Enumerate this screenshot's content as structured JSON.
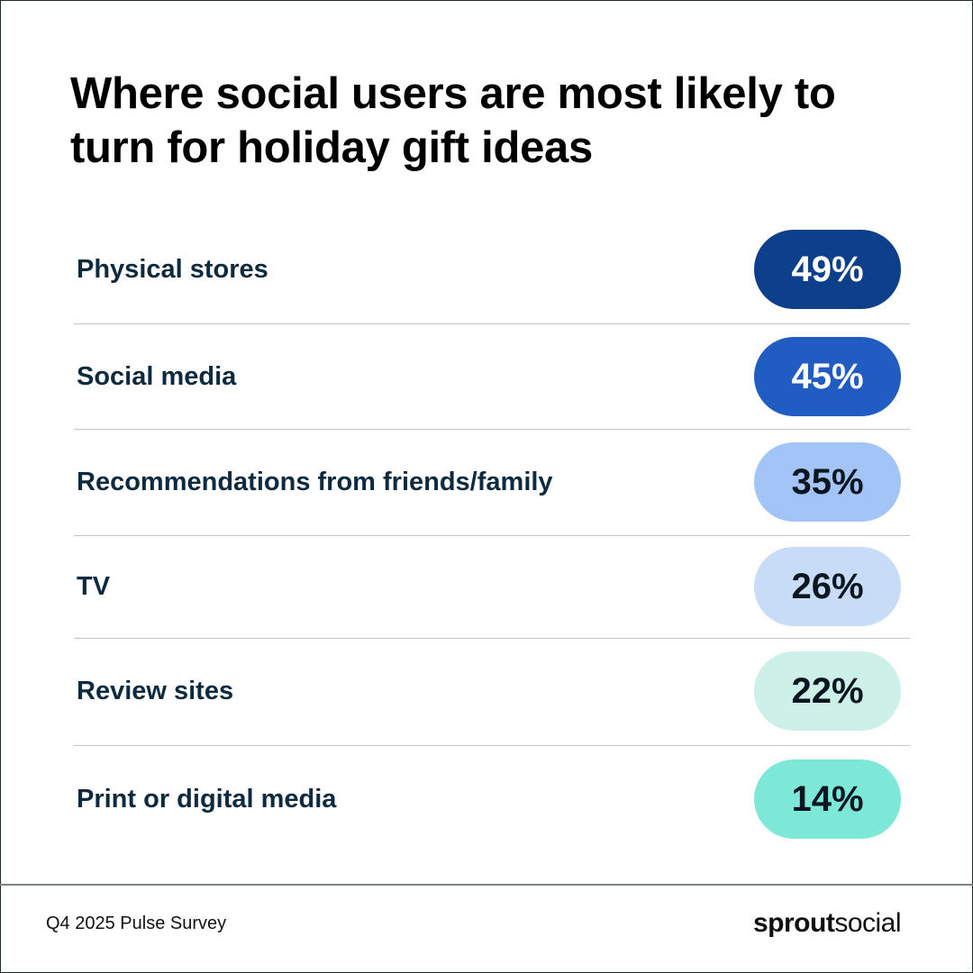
{
  "title": "Where social users are most likely to turn for holiday gift ideas",
  "chart_data": {
    "type": "table",
    "title": "Where social users are most likely to turn for holiday gift ideas",
    "categories": [
      "Physical stores",
      "Social media",
      "Recommendations from friends/family",
      "TV",
      "Review sites",
      "Print or digital media"
    ],
    "values": [
      49,
      45,
      35,
      26,
      22,
      14
    ],
    "value_labels": [
      "49%",
      "45%",
      "35%",
      "26%",
      "22%",
      "14%"
    ],
    "pill_colors": [
      "#0d3f8a",
      "#215cc3",
      "#a3c4f7",
      "#c8dcf7",
      "#cdf0e8",
      "#7de8d8"
    ],
    "text_colors": [
      "#ffffff",
      "#ffffff",
      "#0a1620",
      "#0a1620",
      "#0a1620",
      "#0a1620"
    ]
  },
  "footer": {
    "source": "Q4 2025 Pulse Survey",
    "logo_bold": "sprout",
    "logo_light": "social"
  }
}
